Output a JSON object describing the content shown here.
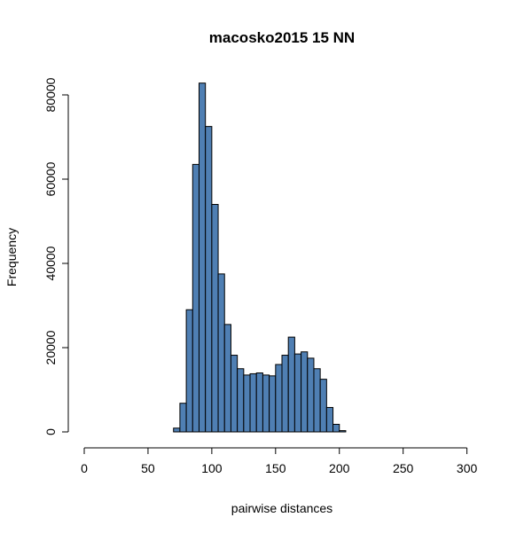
{
  "chart_data": {
    "type": "bar",
    "title": "macosko2015 15 NN",
    "xlabel": "pairwise distances",
    "ylabel": "Frequency",
    "xlim": [
      0,
      310
    ],
    "ylim": [
      0,
      85000
    ],
    "x_ticks": [
      0,
      50,
      100,
      150,
      200,
      250,
      300
    ],
    "y_ticks": [
      0,
      20000,
      40000,
      60000,
      80000
    ],
    "bin_width": 5,
    "bar_color": "#4f7fb3",
    "bins_start": [
      0,
      5,
      10,
      15,
      20,
      25,
      30,
      35,
      40,
      45,
      50,
      55,
      60,
      65,
      70,
      75,
      80,
      85,
      90,
      95,
      100,
      105,
      110,
      115,
      120,
      125,
      130,
      135,
      140,
      145,
      150,
      155,
      160,
      165,
      170,
      175,
      180,
      185,
      190,
      195,
      200,
      205,
      210,
      215,
      220,
      225,
      230,
      235,
      240,
      245,
      250,
      255,
      260,
      265,
      270,
      275,
      280,
      285,
      290,
      295,
      300,
      305
    ],
    "values": [
      0,
      0,
      0,
      0,
      0,
      0,
      0,
      0,
      0,
      0,
      0,
      0,
      0,
      0,
      900,
      6800,
      29000,
      63500,
      82800,
      72500,
      54000,
      37500,
      25500,
      18200,
      15000,
      13500,
      13800,
      14000,
      13500,
      13300,
      16000,
      18200,
      22500,
      18500,
      19000,
      17500,
      15000,
      12500,
      5800,
      1800,
      300,
      0,
      0,
      0,
      0,
      0,
      0,
      0,
      0,
      0,
      0,
      0,
      0,
      0,
      0,
      0,
      0,
      0,
      0,
      0,
      0,
      0
    ]
  }
}
